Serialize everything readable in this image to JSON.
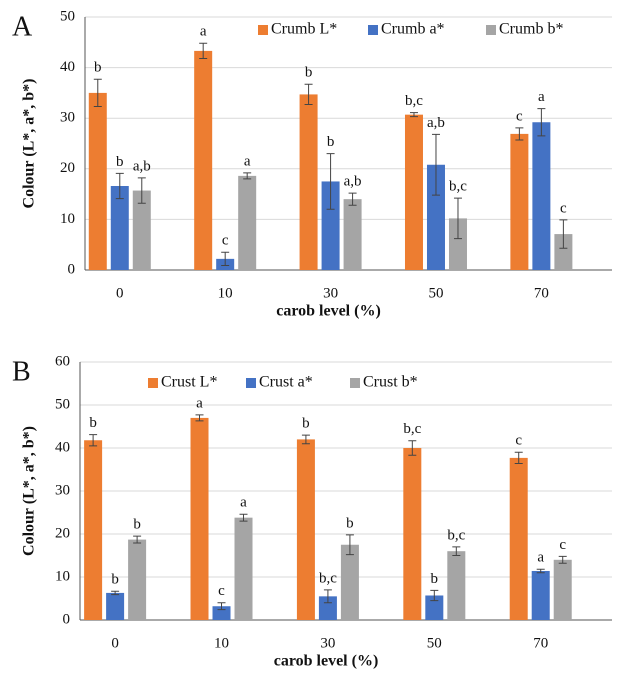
{
  "chart_data": [
    {
      "type": "bar",
      "panel": "A",
      "ylabel": "Colour (L*, a*, b*)",
      "xlabel": "carob level (%)",
      "categories": [
        "0",
        "10",
        "30",
        "50",
        "70"
      ],
      "ylim": [
        0,
        50
      ],
      "yticks": [
        0,
        10,
        20,
        30,
        40,
        50
      ],
      "grid": true,
      "series": [
        {
          "name": "Crumb L*",
          "color": "#ed7d31",
          "values": [
            35,
            43.3,
            34.7,
            30.7,
            26.9
          ],
          "errors": [
            2.7,
            1.5,
            2,
            0.4,
            1.2
          ],
          "letters": [
            "b",
            "a",
            "b",
            "b,c",
            "c"
          ]
        },
        {
          "name": "Crumb a*",
          "color": "#4472c4",
          "values": [
            16.6,
            2.2,
            17.5,
            20.8,
            29.2
          ],
          "errors": [
            2.5,
            1.3,
            5.5,
            6,
            2.7
          ],
          "letters": [
            "b",
            "c",
            "b",
            "a,b",
            "a"
          ]
        },
        {
          "name": "Crumb b*",
          "color": "#a5a5a5",
          "values": [
            15.7,
            18.6,
            14,
            10.2,
            7.1
          ],
          "errors": [
            2.5,
            0.6,
            1.2,
            4,
            2.8
          ],
          "letters": [
            "a,b",
            "a",
            "a,b",
            "b,c",
            "c"
          ]
        }
      ]
    },
    {
      "type": "bar",
      "panel": "B",
      "ylabel": "Colour (L*, a*, b*)",
      "xlabel": "carob level (%)",
      "categories": [
        "0",
        "10",
        "30",
        "50",
        "70"
      ],
      "ylim": [
        0,
        60
      ],
      "yticks": [
        0,
        10,
        20,
        30,
        40,
        50,
        60
      ],
      "grid": true,
      "series": [
        {
          "name": "Crust L*",
          "color": "#ed7d31",
          "values": [
            41.8,
            47,
            42,
            40,
            37.7
          ],
          "errors": [
            1.3,
            0.7,
            1,
            1.7,
            1.3
          ],
          "letters": [
            "b",
            "a",
            "b",
            "b,c",
            "c"
          ]
        },
        {
          "name": "Crust a*",
          "color": "#4472c4",
          "values": [
            6.3,
            3.2,
            5.5,
            5.7,
            11.4
          ],
          "errors": [
            0.4,
            0.8,
            1.5,
            1.2,
            0.4
          ],
          "letters": [
            "b",
            "c",
            "b,c",
            "b",
            "a"
          ]
        },
        {
          "name": "Crust b*",
          "color": "#a5a5a5",
          "values": [
            18.7,
            23.8,
            17.5,
            16,
            14
          ],
          "errors": [
            0.8,
            0.8,
            2.3,
            1,
            0.8
          ],
          "letters": [
            "b",
            "a",
            "b",
            "b,c",
            "c"
          ]
        }
      ]
    }
  ]
}
